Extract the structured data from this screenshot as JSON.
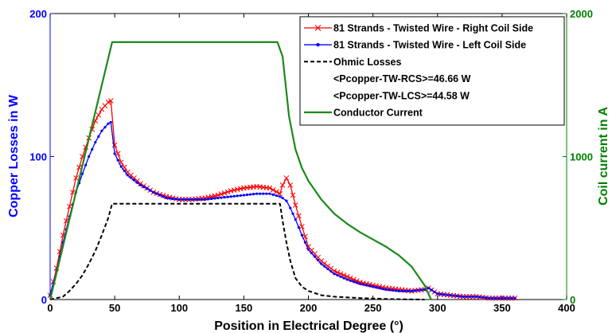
{
  "chart_data": {
    "type": "line",
    "xlabel": "Position in Electrical Degree (°)",
    "ylabel_left": "Copper Losses in W",
    "ylabel_right": "Coil current in A",
    "xlim": [
      0,
      400
    ],
    "ylim_left": [
      0,
      200
    ],
    "ylim_right": [
      0,
      2000
    ],
    "x_ticks": [
      0,
      50,
      100,
      150,
      200,
      250,
      300,
      350,
      400
    ],
    "y_ticks_left": [
      0,
      100,
      200
    ],
    "y_ticks_right": [
      0,
      1000,
      2000
    ],
    "grid": false,
    "legend_position": "top-right",
    "colors": {
      "left_axis": "#0000ff",
      "right_axis": "#008000",
      "rcs": "#ff0000",
      "lcs": "#0000ff",
      "ohmic": "#000000",
      "current": "#1a8a1a"
    },
    "legend": [
      {
        "label": "81 Strands - Twisted Wire - Right Coil Side",
        "style": "red-x"
      },
      {
        "label": "81 Strands - Twisted Wire - Left Coil Side",
        "style": "blue-dot"
      },
      {
        "label": "Ohmic Losses",
        "style": "black-dash"
      },
      {
        "label": "<Pcopper-TW-RCS>=46.66 W",
        "style": "none"
      },
      {
        "label": "<Pcopper-TW-LCS>=44.58 W",
        "style": "none"
      },
      {
        "label": "Conductor Current",
        "style": "green-line"
      }
    ],
    "series": [
      {
        "name": "81 Strands - Twisted Wire - Right Coil Side",
        "axis": "left",
        "x": [
          0,
          5,
          10,
          15,
          20,
          25,
          30,
          35,
          40,
          45,
          47,
          50,
          55,
          60,
          70,
          80,
          90,
          100,
          110,
          120,
          130,
          140,
          150,
          160,
          170,
          178,
          180,
          183,
          186,
          190,
          195,
          200,
          210,
          220,
          230,
          240,
          250,
          260,
          270,
          280,
          290,
          293,
          300,
          310,
          320,
          330,
          340,
          350,
          360
        ],
        "y": [
          3,
          22,
          45,
          65,
          85,
          100,
          113,
          125,
          133,
          138,
          139,
          108,
          96,
          89,
          81,
          75,
          72,
          70,
          70,
          71,
          73,
          76,
          78,
          79,
          78,
          74,
          80,
          85,
          80,
          66,
          51,
          37,
          27,
          20,
          16,
          12,
          10,
          8,
          7,
          6,
          7,
          8,
          4,
          3,
          2,
          2,
          1,
          1,
          1
        ]
      },
      {
        "name": "81 Strands - Twisted Wire - Left Coil Side",
        "axis": "left",
        "x": [
          0,
          5,
          10,
          15,
          20,
          25,
          30,
          35,
          40,
          45,
          47,
          50,
          55,
          60,
          70,
          80,
          90,
          100,
          110,
          120,
          130,
          140,
          150,
          160,
          170,
          178,
          180,
          183,
          186,
          190,
          195,
          200,
          210,
          220,
          230,
          240,
          250,
          260,
          270,
          280,
          290,
          293,
          300,
          310,
          320,
          330,
          340,
          350,
          360
        ],
        "y": [
          3,
          20,
          40,
          58,
          75,
          88,
          100,
          110,
          118,
          123,
          124,
          102,
          93,
          87,
          80,
          75,
          71,
          70,
          70,
          70,
          71,
          72,
          73,
          74,
          74,
          72,
          71,
          69,
          64,
          56,
          45,
          35,
          25,
          18,
          14,
          11,
          9,
          7,
          6,
          6,
          7,
          8,
          4,
          3,
          2,
          2,
          1,
          1,
          1
        ]
      },
      {
        "name": "Ohmic Losses",
        "axis": "left",
        "x": [
          0,
          5,
          10,
          15,
          20,
          25,
          30,
          35,
          40,
          45,
          48,
          60,
          80,
          100,
          120,
          140,
          160,
          178,
          180,
          183,
          186,
          190,
          195,
          200,
          210,
          220,
          230,
          240,
          250,
          260,
          270,
          280,
          290
        ],
        "y": [
          0,
          1,
          2,
          6,
          11,
          17,
          25,
          34,
          45,
          57,
          67,
          67,
          67,
          67,
          67,
          67,
          67,
          67,
          55,
          40,
          27,
          15,
          9,
          6,
          3,
          2,
          1.5,
          1,
          0.7,
          0.4,
          0.2,
          0.1,
          0
        ]
      },
      {
        "name": "Conductor Current",
        "axis": "right",
        "x": [
          0,
          48,
          60,
          80,
          100,
          120,
          140,
          160,
          176,
          180,
          185,
          190,
          195,
          200,
          210,
          220,
          230,
          240,
          250,
          260,
          270,
          280,
          290,
          295
        ],
        "y": [
          0,
          1800,
          1800,
          1800,
          1800,
          1800,
          1800,
          1800,
          1800,
          1700,
          1280,
          1050,
          920,
          830,
          700,
          600,
          530,
          470,
          420,
          370,
          310,
          230,
          100,
          0
        ]
      }
    ]
  }
}
